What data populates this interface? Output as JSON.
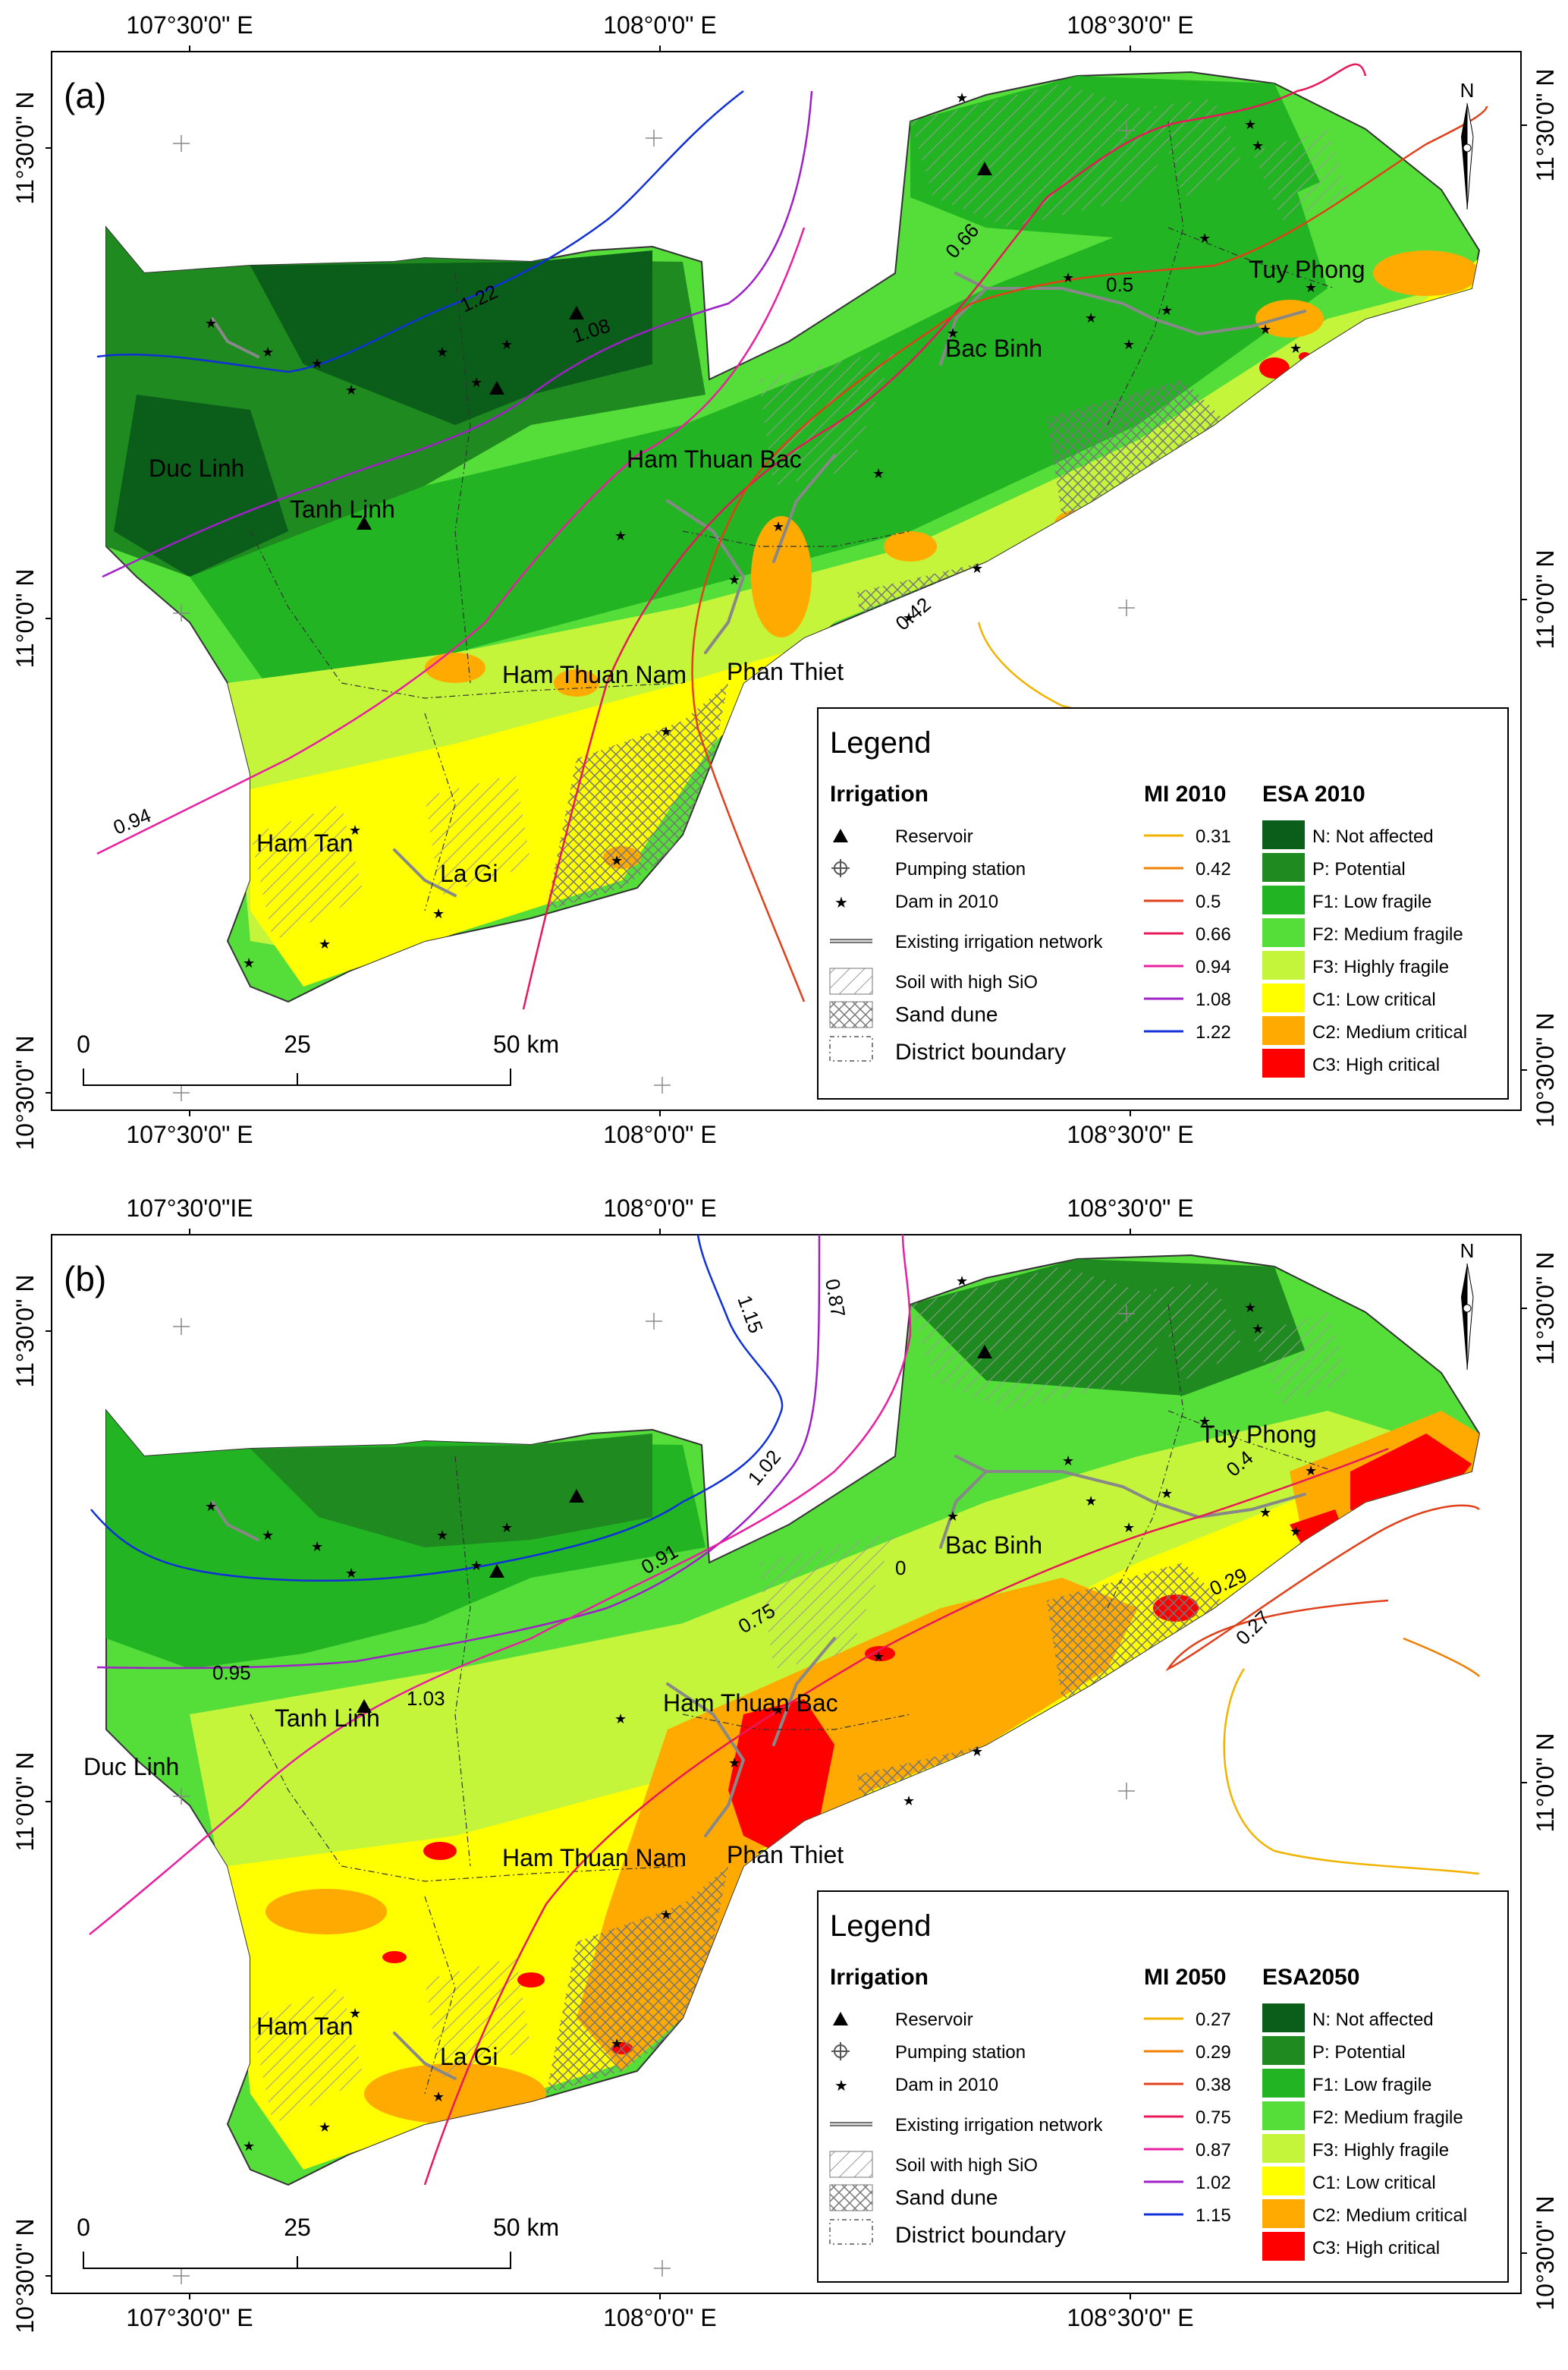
{
  "panels": [
    {
      "id": "a",
      "label": "(a)",
      "lon_labels": [
        "107°30'0\" E",
        "108°0'0\" E",
        "108°30'0\" E"
      ],
      "lat_labels": [
        "11°30'0\" N",
        "11°0'0\" N",
        "10°30'0\" N"
      ],
      "districts": [
        "Duc Linh",
        "Tanh Linh",
        "Ham Thuan Bac",
        "Bac Binh",
        "Tuy Phong",
        "Ham Thuan Nam",
        "Phan Thiet",
        "Ham Tan",
        "La Gi"
      ],
      "contour_labels": [
        "1.22",
        "1.08",
        "0.94",
        "0.66",
        "0.5",
        "0.42"
      ],
      "scale": {
        "z": "0",
        "q": "25",
        "h": "50 km"
      },
      "legend": {
        "title": "Legend",
        "irrigation_title": "Irrigation",
        "irrigation": [
          "Reservoir",
          "Pumping station",
          "Dam in 2010",
          "Existing irrigation network",
          "Soil with high SiO",
          "Sand dune",
          "District boundary"
        ],
        "mi_title": "MI 2010",
        "mi": [
          {
            "value": "0.31",
            "color": "#F2B300"
          },
          {
            "value": "0.42",
            "color": "#F07F00"
          },
          {
            "value": "0.5",
            "color": "#E0401A"
          },
          {
            "value": "0.66",
            "color": "#E8185A"
          },
          {
            "value": "0.94",
            "color": "#E81FA0"
          },
          {
            "value": "1.08",
            "color": "#A020C8"
          },
          {
            "value": "1.22",
            "color": "#1030D8"
          }
        ],
        "esa_title": "ESA 2010",
        "esa": [
          {
            "label": "N: Not affected",
            "color": "#0B5E1A"
          },
          {
            "label": "P: Potential",
            "color": "#1F8A1F"
          },
          {
            "label": "F1: Low fragile",
            "color": "#22B422"
          },
          {
            "label": "F2: Medium fragile",
            "color": "#55DD3A"
          },
          {
            "label": "F3: Highly fragile",
            "color": "#C5F53A"
          },
          {
            "label": "C1: Low critical",
            "color": "#FFFF00"
          },
          {
            "label": "C2: Medium critical",
            "color": "#FFAA00"
          },
          {
            "label": "C3: High critical",
            "color": "#FF0000"
          }
        ]
      }
    },
    {
      "id": "b",
      "label": "(b)",
      "lon_labels": [
        "107°30'0\"IE",
        "108°0'0\" E",
        "108°30'0\" E"
      ],
      "lat_labels": [
        "11°30'0\" N",
        "11°0'0\" N",
        "10°30'0\" N"
      ],
      "districts": [
        "Tuy Phong",
        "Bac Binh",
        "Ham Thuan Bac",
        "Tanh Linh",
        "Duc Linh",
        "Ham Thuan Nam",
        "Phan Thiet",
        "Ham Tan",
        "La Gi"
      ],
      "contour_labels": [
        "1.15",
        "1.02",
        "0.87",
        "0.95",
        "1.03",
        "0.91",
        "0.75",
        "0",
        "0.29",
        "0.27",
        "0.4"
      ],
      "scale": {
        "z": "0",
        "q": "25",
        "h": "50 km"
      },
      "legend": {
        "title": "Legend",
        "irrigation_title": "Irrigation",
        "irrigation": [
          "Reservoir",
          "Pumping station",
          "Dam in 2010",
          "Existing irrigation network",
          "Soil with high SiO",
          "Sand dune",
          "District boundary"
        ],
        "mi_title": "MI 2050",
        "mi": [
          {
            "value": "0.27",
            "color": "#F2B300"
          },
          {
            "value": "0.29",
            "color": "#F07F00"
          },
          {
            "value": "0.38",
            "color": "#E0401A"
          },
          {
            "value": "0.75",
            "color": "#E8185A"
          },
          {
            "value": "0.87",
            "color": "#E81FA0"
          },
          {
            "value": "1.02",
            "color": "#A020C8"
          },
          {
            "value": "1.15",
            "color": "#1030D8"
          }
        ],
        "esa_title": "ESA2050",
        "esa": [
          {
            "label": "N: Not affected",
            "color": "#0B5E1A"
          },
          {
            "label": "P: Potential",
            "color": "#1F8A1F"
          },
          {
            "label": "F1: Low fragile",
            "color": "#22B422"
          },
          {
            "label": "F2: Medium fragile",
            "color": "#55DD3A"
          },
          {
            "label": "F3: Highly fragile",
            "color": "#C5F53A"
          },
          {
            "label": "C1: Low critical",
            "color": "#FFFF00"
          },
          {
            "label": "C2: Medium critical",
            "color": "#FFAA00"
          },
          {
            "label": "C3: High critical",
            "color": "#FF0000"
          }
        ]
      }
    }
  ],
  "north_label": "N"
}
